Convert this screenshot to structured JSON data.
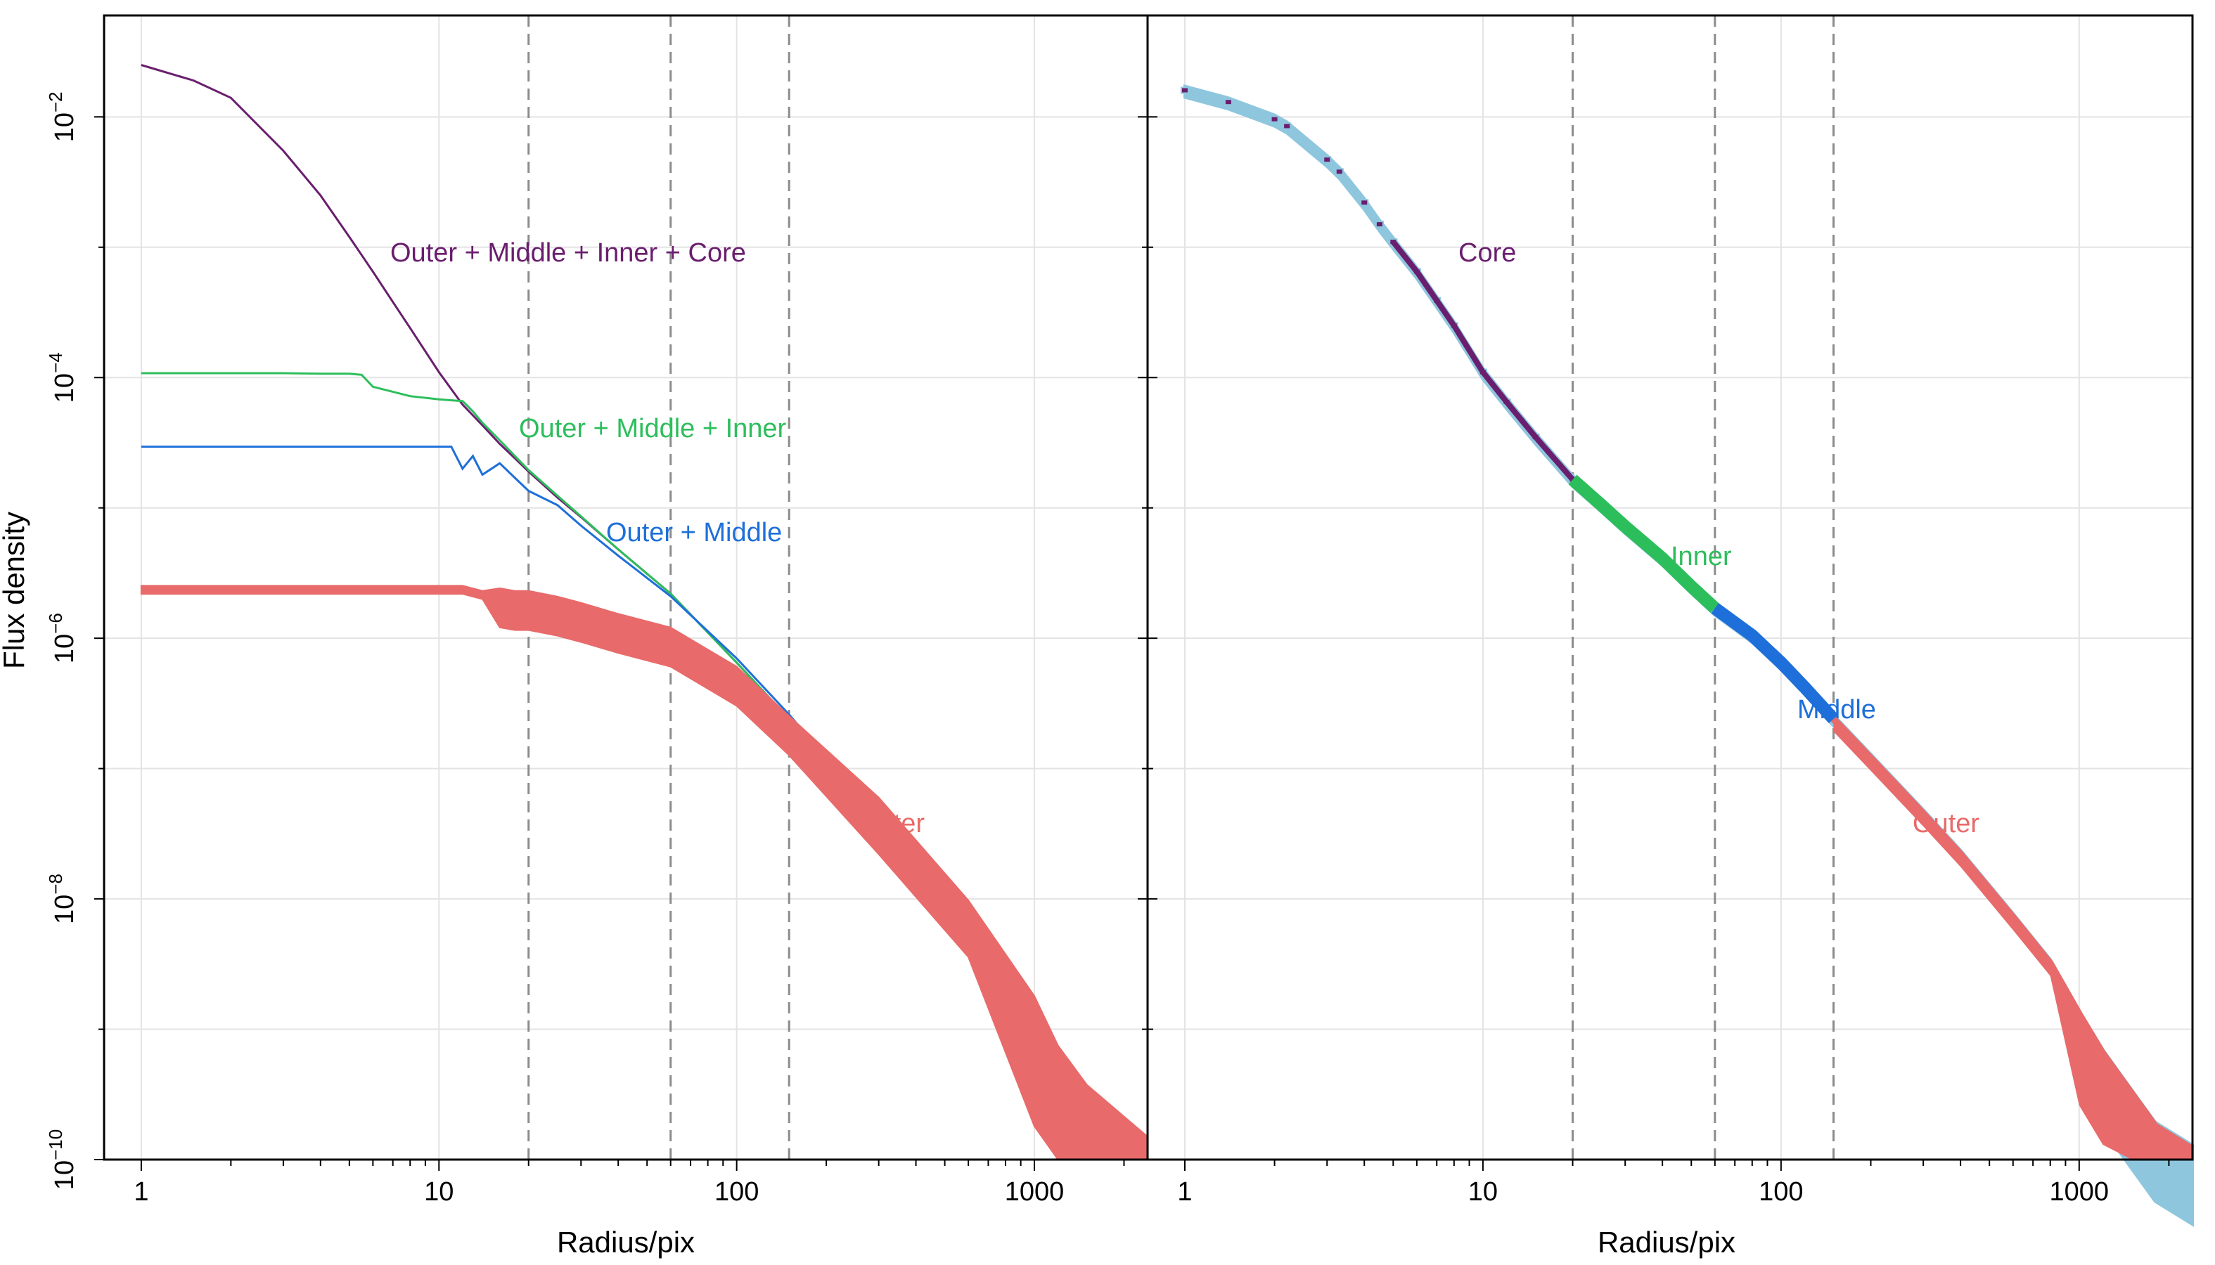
{
  "figure": {
    "ylabel": "Flux density",
    "grid": true
  },
  "chart_data": [
    {
      "type": "line",
      "panel": "left",
      "xscale": "log",
      "yscale": "log",
      "xlabel": "Radius/pix",
      "ylabel": "Flux density",
      "xlim": [
        0.75,
        2400
      ],
      "ylim": [
        1e-10,
        0.06
      ],
      "x_ticks": [
        "1",
        "10",
        "100",
        "1000"
      ],
      "y_ticks": [
        {
          "base": "10",
          "exp": "−10"
        },
        {
          "base": "10",
          "exp": "−8"
        },
        {
          "base": "10",
          "exp": "−6"
        },
        {
          "base": "10",
          "exp": "−4"
        },
        {
          "base": "10",
          "exp": "−2"
        }
      ],
      "vlines": [
        20,
        60,
        150
      ],
      "series": [
        {
          "name": "Outer + Middle + Inner + Core",
          "color": "#6A1E6E",
          "x": [
            1,
            1.5,
            2,
            3,
            4,
            5,
            6,
            7,
            8,
            10,
            12,
            14,
            16,
            18,
            20,
            25,
            30,
            40,
            60,
            100,
            150,
            300,
            600,
            1000,
            1500,
            2400
          ],
          "y": [
            0.025,
            0.019,
            0.014,
            0.0055,
            0.0025,
            0.0012,
            0.00065,
            0.00038,
            0.00024,
            0.00011,
            6.2e-05,
            4.3e-05,
            3.1e-05,
            2.4e-05,
            1.9e-05,
            1.2e-05,
            8.5e-06,
            4.8e-06,
            2.2e-06,
            6.5e-07,
            2.4e-07,
            4e-08,
            6.5e-09,
            1.2e-09,
            2.5e-10,
            1e-10
          ]
        },
        {
          "name": "Outer + Middle + Inner",
          "color": "#2DBE5C",
          "x": [
            1,
            2,
            3,
            4,
            5,
            5.5,
            6,
            8,
            10,
            12,
            13,
            14,
            16,
            18,
            20,
            25,
            30,
            40,
            60,
            100,
            150,
            300,
            600,
            1000,
            1500,
            2400
          ],
          "y": [
            0.000108,
            0.000108,
            0.000108,
            0.000107,
            0.000107,
            0.000105,
            8.5e-05,
            7.2e-05,
            6.8e-05,
            6.6e-05,
            5.5e-05,
            4.5e-05,
            3.3e-05,
            2.5e-05,
            1.95e-05,
            1.24e-05,
            8.6e-06,
            4.8e-06,
            2.2e-06,
            6.5e-07,
            2.4e-07,
            4e-08,
            6.5e-09,
            1.2e-09,
            2.5e-10,
            1e-10
          ]
        },
        {
          "name": "Outer + Middle",
          "color": "#1E6FD9",
          "x": [
            1,
            2,
            3,
            5,
            7,
            10,
            11,
            12,
            13,
            14,
            16,
            18,
            20,
            25,
            30,
            40,
            60,
            100,
            150,
            300,
            600,
            1000,
            1500,
            2400
          ],
          "y": [
            2.95e-05,
            2.95e-05,
            2.95e-05,
            2.95e-05,
            2.95e-05,
            2.95e-05,
            2.95e-05,
            2e-05,
            2.5e-05,
            1.8e-05,
            2.2e-05,
            1.7e-05,
            1.35e-05,
            1.05e-05,
            7.3e-06,
            4.3e-06,
            2.1e-06,
            7e-07,
            2.6e-07,
            4e-08,
            6.5e-09,
            1.2e-09,
            2.5e-10,
            1e-10
          ]
        },
        {
          "name": "Outer",
          "color": "#E86A6A",
          "x": [
            1,
            2,
            3,
            5,
            7,
            10,
            12,
            14,
            16,
            18,
            20,
            25,
            30,
            40,
            60,
            100,
            150,
            300,
            600,
            1000,
            1200,
            1500,
            2400
          ],
          "y": [
            2.3e-06,
            2.3e-06,
            2.3e-06,
            2.3e-06,
            2.3e-06,
            2.3e-06,
            2.3e-06,
            2.1e-06,
            2.2e-06,
            2.1e-06,
            2.1e-06,
            1.9e-06,
            1.7e-06,
            1.4e-06,
            1.1e-06,
            5.5e-07,
            2.3e-07,
            4e-08,
            6.5e-09,
            1.2e-09,
            5e-10,
            2.5e-10,
            1e-10
          ]
        }
      ],
      "annotations": [
        {
          "text": "Outer + Middle + Inner + Core",
          "color": "#6A1E6E"
        },
        {
          "text": "Outer + Middle + Inner",
          "color": "#2DBE5C"
        },
        {
          "text": "Outer + Middle",
          "color": "#1E6FD9"
        },
        {
          "text": "Outer",
          "color": "#E86A6A"
        }
      ]
    },
    {
      "type": "scatter",
      "panel": "right",
      "xscale": "log",
      "yscale": "log",
      "xlabel": "Radius/pix",
      "xlim": [
        0.75,
        2400
      ],
      "ylim": [
        1e-10,
        0.06
      ],
      "x_ticks": [
        "1",
        "10",
        "100",
        "1000"
      ],
      "vlines": [
        20,
        60,
        150
      ],
      "envelope_color": "#8EC6DE",
      "series": [
        {
          "name": "Core",
          "color": "#6A1E6E",
          "x": [
            1,
            1.4,
            2,
            2.2,
            3,
            3.3,
            4,
            4.5,
            5,
            6,
            7,
            8,
            10,
            12,
            15,
            20
          ],
          "y": [
            0.016,
            0.013,
            0.0096,
            0.0085,
            0.0047,
            0.0038,
            0.0022,
            0.0015,
            0.0011,
            0.00065,
            0.00039,
            0.00025,
            0.00011,
            6.5e-05,
            3.5e-05,
            1.65e-05
          ]
        },
        {
          "name": "Inner",
          "color": "#2DBE5C",
          "x": [
            20,
            25,
            30,
            40,
            50,
            60
          ],
          "y": [
            1.65e-05,
            1.05e-05,
            7.2e-06,
            4.1e-06,
            2.5e-06,
            1.7e-06
          ]
        },
        {
          "name": "Middle",
          "color": "#1E6FD9",
          "x": [
            60,
            80,
            100,
            120,
            150
          ],
          "y": [
            1.7e-06,
            1.05e-06,
            6.5e-07,
            4.2e-07,
            2.4e-07
          ]
        },
        {
          "name": "Outer",
          "color": "#E86A6A",
          "x": [
            150,
            200,
            300,
            400,
            600,
            800,
            1000,
            1200,
            1500,
            1800,
            2400
          ],
          "y": [
            2.4e-07,
            1.2e-07,
            4.5e-08,
            2.2e-08,
            7.2e-09,
            3.2e-09,
            1.3e-09,
            6.5e-10,
            3.2e-10,
            1.8e-10,
            1.2e-10
          ]
        }
      ],
      "annotations": [
        {
          "text": "Core",
          "color": "#6A1E6E"
        },
        {
          "text": "Inner",
          "color": "#2DBE5C"
        },
        {
          "text": "Middle",
          "color": "#1E6FD9"
        },
        {
          "text": "Outer",
          "color": "#E86A6A"
        }
      ]
    }
  ]
}
